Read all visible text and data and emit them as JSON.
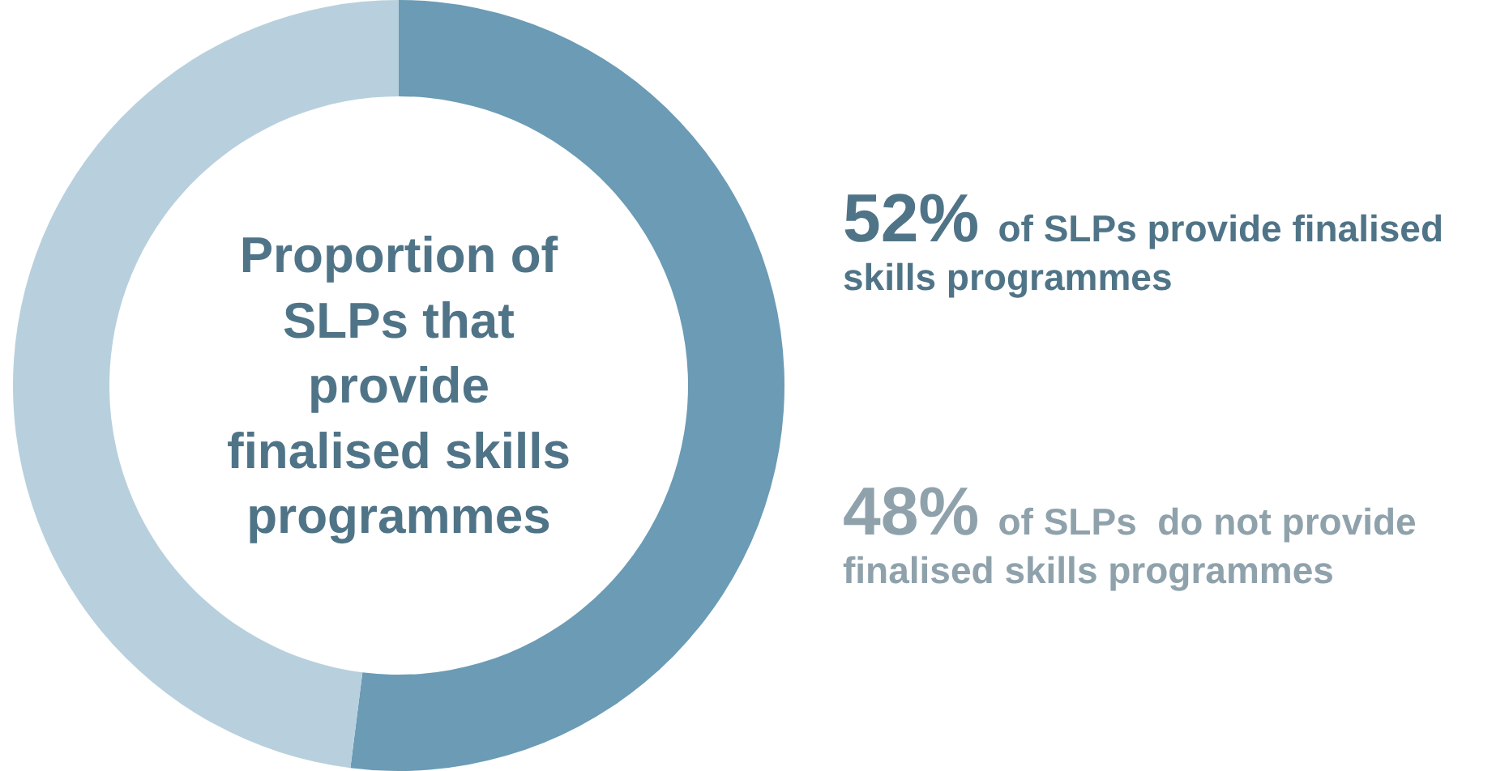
{
  "chart_data": {
    "type": "donut",
    "title": "Proportion of SLPs that provide finalised skills programmes",
    "categories": [
      null,
      null
    ],
    "values": [
      52,
      48
    ],
    "colors": [
      "#6b9bb5",
      "#b8d0dd"
    ],
    "annotations": [
      "52% of SLPs provide finalised skills programmes",
      "48% of SLPs  do not provide finalised skills programmes"
    ],
    "legend": false
  }
}
